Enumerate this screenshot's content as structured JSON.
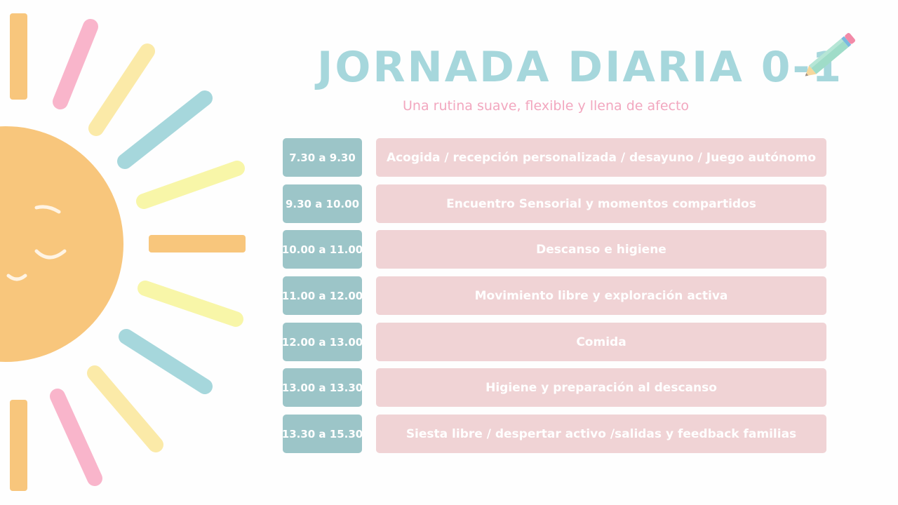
{
  "header": {
    "title": "JORNADA DIARIA 0-1",
    "subtitle": "Una rutina suave, flexible y llena de afecto"
  },
  "decorations": {
    "left": "smiling-sun-icon",
    "title_icon": "pencil-icon"
  },
  "colors": {
    "title": "#a6d7dc",
    "subtitle": "#f2a7bf",
    "time_box": "#9cc5c8",
    "activity_box": "#f0d3d5",
    "sun": "#f8c67c",
    "ray_pink": "#f9b5cb",
    "ray_yellow": "#fbeaa8",
    "ray_blue": "#a6d7dc",
    "ray_lemon": "#f8f6a8"
  },
  "schedule": [
    {
      "time": "7.30 a 9.30",
      "activity": "Acogida / recepción personalizada / desayuno / Juego autónomo"
    },
    {
      "time": "9.30 a 10.00",
      "activity": "Encuentro Sensorial y momentos compartidos"
    },
    {
      "time": "10.00 a 11.00",
      "activity": "Descanso e higiene"
    },
    {
      "time": "11.00 a 12.00",
      "activity": "Movimiento libre y exploración activa"
    },
    {
      "time": "12.00 a 13.00",
      "activity": "Comida"
    },
    {
      "time": "13.00 a 13.30",
      "activity": "Higiene y preparación al descanso"
    },
    {
      "time": "13.30 a 15.30",
      "activity": "Siesta libre / despertar activo /salidas y feedback familias"
    }
  ]
}
